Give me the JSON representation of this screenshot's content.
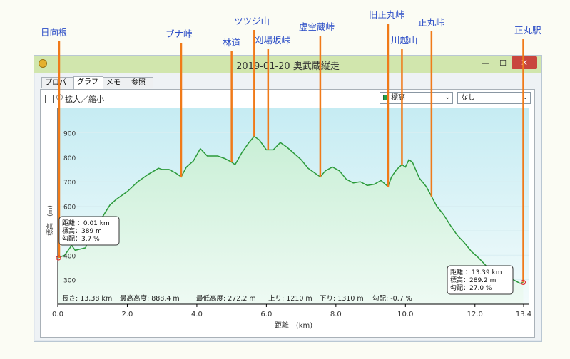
{
  "window": {
    "title": "2019-01-20 奥武蔵縦走",
    "minimize_label": "—",
    "maximize_label": "☐",
    "close_label": "✕",
    "app_icon": "app-icon"
  },
  "tabs": [
    {
      "label": "プロパティ"
    },
    {
      "label": "グラフ"
    },
    {
      "label": "メモ"
    },
    {
      "label": "参照"
    }
  ],
  "toolbar": {
    "zoom_label": "拡大／縮小",
    "series_select": "標高",
    "secondary_select": "なし"
  },
  "annotations": [
    {
      "name": "日向根",
      "dist": 0.0
    },
    {
      "name": "ブナ峠",
      "dist": 3.55
    },
    {
      "name": "林道",
      "dist": 5.0
    },
    {
      "name": "ツツジ山",
      "dist": 5.65
    },
    {
      "name": "刈場坂峠",
      "dist": 6.05
    },
    {
      "name": "虚空蔵峠",
      "dist": 7.55
    },
    {
      "name": "旧正丸峠",
      "dist": 9.5
    },
    {
      "name": "川越山",
      "dist": 9.9
    },
    {
      "name": "正丸峠",
      "dist": 10.75
    },
    {
      "name": "正丸駅",
      "dist": 13.39
    }
  ],
  "tooltips": {
    "start": {
      "line1": "距離 ：0.01 km",
      "line2": "標高：389 m",
      "line3": "勾配：3.7 %"
    },
    "end": {
      "line1": "距離 ：13.39 km",
      "line2": "標高：289.2 m",
      "line3": "勾配：27.0 %"
    }
  },
  "stats": {
    "length": "長さ: 13.38 km",
    "max": "最高高度: 888.4 m",
    "min": "最低高度: 272.2 m",
    "up": "上り: 1210 m",
    "down": "下り: 1310 m",
    "grade": "勾配: -0.7 %"
  },
  "colors": {
    "line": "#2b9a3a",
    "fill_top": "#c6ecf3",
    "fill_bottom": "#f2fbfb",
    "annotation": "#f07a19",
    "label": "#2a4cc6"
  },
  "chart_data": {
    "type": "area",
    "xlabel": "距離　(km)",
    "ylabel": "標高　(m)",
    "xlim": [
      0,
      13.5
    ],
    "ylim": [
      200,
      1000
    ],
    "x_ticks": [
      {
        "value": 0,
        "label": "0.0"
      },
      {
        "value": 2,
        "label": "2.0"
      },
      {
        "value": 4,
        "label": "4.0"
      },
      {
        "value": 6,
        "label": "6.0"
      },
      {
        "value": 8,
        "label": "8.0"
      },
      {
        "value": 10,
        "label": "10.0"
      },
      {
        "value": 12,
        "label": "12.0"
      },
      {
        "value": 13.4,
        "label": "13.4"
      }
    ],
    "y_ticks": [
      {
        "value": 300,
        "label": "300"
      },
      {
        "value": 400,
        "label": "400"
      },
      {
        "value": 500,
        "label": "500"
      },
      {
        "value": 600,
        "label": "600"
      },
      {
        "value": 700,
        "label": "700"
      },
      {
        "value": 800,
        "label": "800"
      },
      {
        "value": 900,
        "label": "900"
      }
    ],
    "series": [
      {
        "x": [
          0,
          0.2,
          0.4,
          0.5,
          0.8,
          1.0,
          1.3,
          1.5,
          1.7,
          2.0,
          2.3,
          2.6,
          2.9,
          3.0,
          3.2,
          3.4,
          3.55,
          3.7,
          3.9,
          4.1,
          4.3,
          4.6,
          4.8,
          5.0,
          5.1,
          5.3,
          5.5,
          5.65,
          5.8,
          6.0,
          6.2,
          6.4,
          6.6,
          6.8,
          7.0,
          7.2,
          7.4,
          7.55,
          7.7,
          7.9,
          8.1,
          8.3,
          8.5,
          8.7,
          8.9,
          9.1,
          9.3,
          9.5,
          9.6,
          9.75,
          9.9,
          10.0,
          10.1,
          10.2,
          10.4,
          10.6,
          10.75,
          10.9,
          11.1,
          11.3,
          11.5,
          11.7,
          11.9,
          12.1,
          12.3,
          12.5,
          12.7,
          12.9,
          13.1,
          13.3,
          13.39
        ],
        "y": [
          389,
          400,
          440,
          420,
          430,
          510,
          560,
          605,
          630,
          660,
          700,
          730,
          755,
          750,
          750,
          735,
          720,
          760,
          785,
          835,
          805,
          805,
          795,
          780,
          770,
          820,
          860,
          885,
          870,
          830,
          830,
          860,
          840,
          815,
          790,
          755,
          735,
          720,
          745,
          760,
          745,
          710,
          695,
          700,
          685,
          690,
          705,
          680,
          720,
          750,
          770,
          760,
          790,
          780,
          715,
          680,
          640,
          600,
          565,
          520,
          480,
          450,
          415,
          390,
          360,
          330,
          310,
          300,
          300,
          285,
          289
        ]
      }
    ]
  }
}
